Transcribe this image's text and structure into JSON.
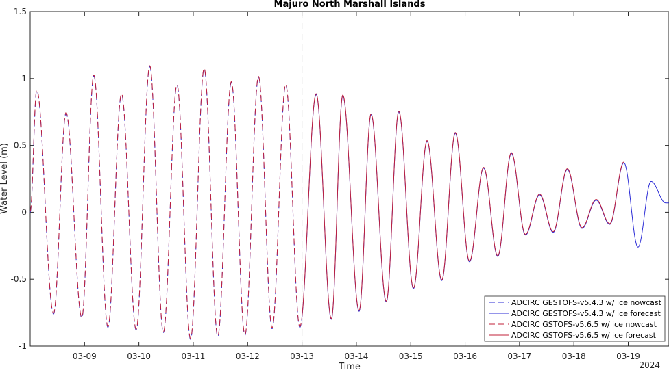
{
  "chart_data": {
    "type": "line",
    "title": "Majuro North Marshall Islands",
    "xlabel": "Time",
    "ylabel": "Water Level (m)",
    "year_label": "2024",
    "x_unit": "days (March 2024)",
    "xlim": [
      "03-08 00:00",
      "03-19 18:00"
    ],
    "ylim": [
      -1,
      1.5
    ],
    "y_ticks": [
      -1,
      -0.5,
      0,
      0.5,
      1,
      1.5
    ],
    "y_tick_labels": [
      "-1",
      "-0.5",
      "0",
      "0.5",
      "1",
      "1.5"
    ],
    "x_ticks": [
      "03-09",
      "03-10",
      "03-11",
      "03-12",
      "03-13",
      "03-14",
      "03-15",
      "03-16",
      "03-17",
      "03-18",
      "03-19"
    ],
    "x_tick_positions": [
      9,
      10,
      11,
      12,
      13,
      14,
      15,
      16,
      17,
      18,
      19
    ],
    "nowcast_forecast_boundary": "03-13 00:00",
    "grid": false,
    "legend_position": "bottom-right",
    "colors": {
      "v543": "#2b2bd6",
      "v565": "#c0203a",
      "boundary": "#999999"
    },
    "tide_peaks": {
      "day": [
        8.0,
        8.12,
        8.43,
        8.66,
        8.95,
        9.17,
        9.43,
        9.68,
        9.95,
        10.2,
        10.45,
        10.7,
        10.95,
        11.2,
        11.45,
        11.7,
        11.95,
        12.2,
        12.45,
        12.7,
        12.96,
        13.26,
        13.54,
        13.75,
        14.05,
        14.27,
        14.55,
        14.78,
        15.05,
        15.3,
        15.57,
        15.82,
        16.08,
        16.34,
        16.6,
        16.85,
        17.11,
        17.37,
        17.62,
        17.88,
        18.15,
        18.41,
        18.66,
        18.92,
        19.18,
        19.42,
        19.69,
        19.75
      ],
      "water_level_m": [
        0.0,
        0.91,
        -0.76,
        0.74,
        -0.79,
        1.02,
        -0.86,
        0.88,
        -0.88,
        1.09,
        -0.9,
        0.95,
        -0.95,
        1.07,
        -0.93,
        0.97,
        -0.92,
        1.01,
        -0.87,
        0.95,
        -0.86,
        0.88,
        -0.8,
        0.87,
        -0.74,
        0.73,
        -0.67,
        0.75,
        -0.57,
        0.53,
        -0.51,
        0.59,
        -0.37,
        0.33,
        -0.33,
        0.44,
        -0.17,
        0.13,
        -0.15,
        0.32,
        -0.12,
        0.09,
        -0.09,
        0.37,
        -0.26,
        0.23,
        0.07,
        0.07
      ]
    },
    "series": [
      {
        "name": "ADCIRC GESTOFS-v5.4.3 w/ ice nowcast",
        "color": "#2b2bd6",
        "style": "dashed",
        "range": [
          "03-08 00:00",
          "03-13 00:00"
        ]
      },
      {
        "name": "ADCIRC GESTOFS-v5.4.3 w/ ice forecast",
        "color": "#2b2bd6",
        "style": "solid",
        "range": [
          "03-13 00:00",
          "03-19 18:00"
        ]
      },
      {
        "name": "ADCIRC GSTOFS-v5.6.5 w/ ice nowcast",
        "color": "#c0203a",
        "style": "dashed",
        "range": [
          "03-08 00:00",
          "03-13 00:00"
        ]
      },
      {
        "name": "ADCIRC GSTOFS-v5.6.5 w/ ice forecast",
        "color": "#c0203a",
        "style": "solid",
        "range": [
          "03-13 00:00",
          "03-18 22:00"
        ]
      }
    ]
  }
}
